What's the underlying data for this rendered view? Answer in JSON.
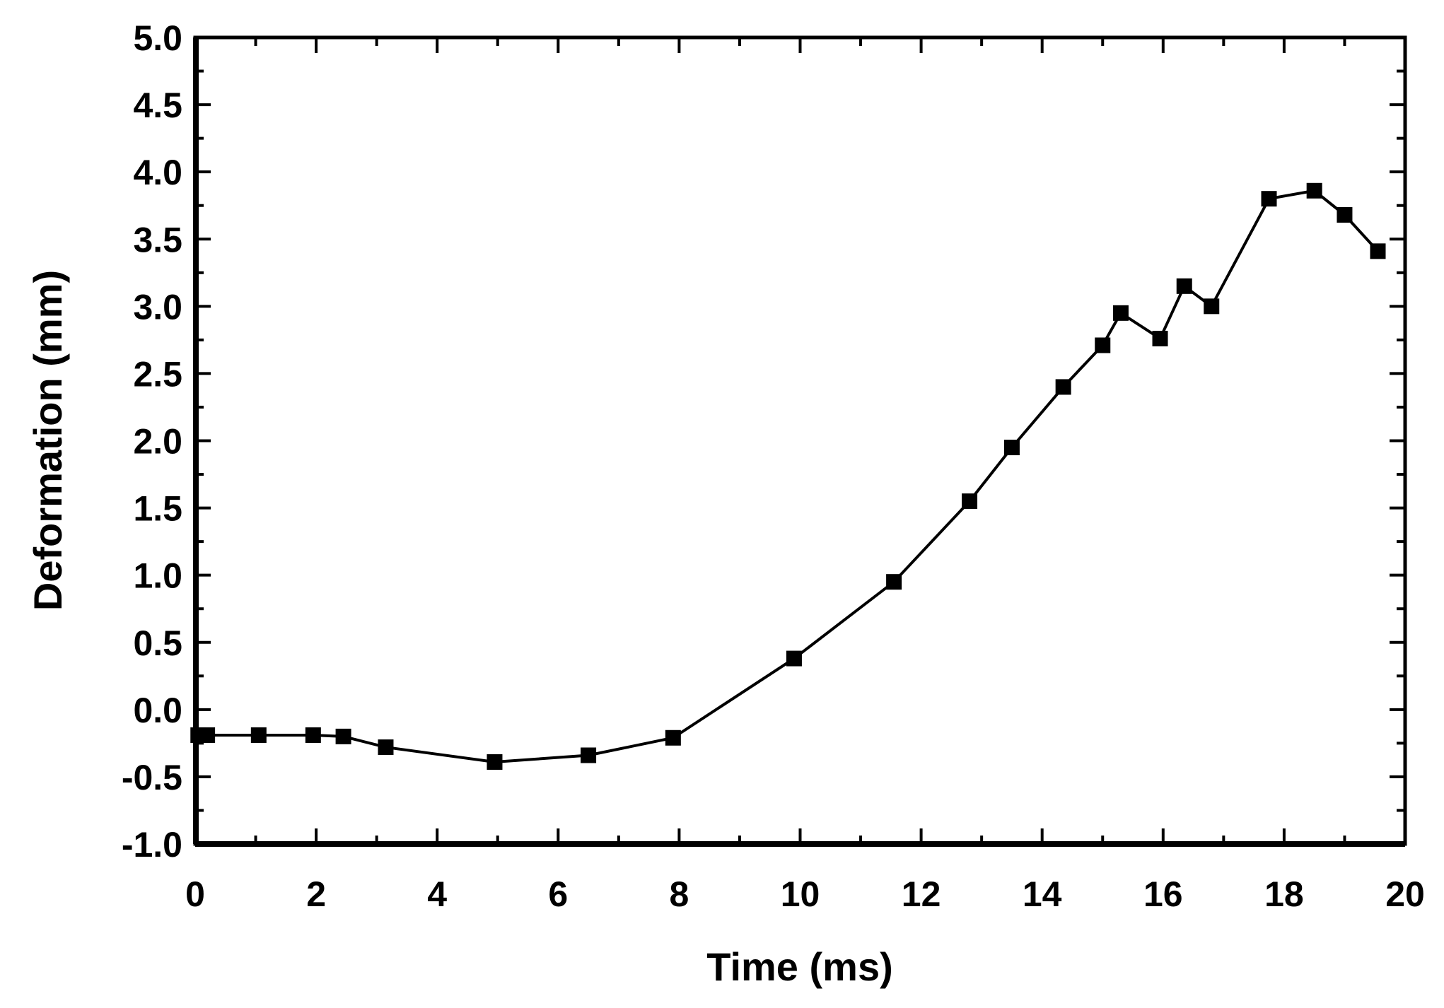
{
  "chart_data": {
    "type": "line",
    "title": "",
    "xlabel": "Time (ms)",
    "ylabel": "Deformation (mm)",
    "xlim": [
      0,
      20
    ],
    "ylim": [
      -1.0,
      5.0
    ],
    "x_ticks": [
      "0",
      "2",
      "4",
      "6",
      "8",
      "10",
      "12",
      "14",
      "16",
      "18",
      "20"
    ],
    "y_ticks": [
      "-1.0",
      "-0.5",
      "0.0",
      "0.5",
      "1.0",
      "1.5",
      "2.0",
      "2.5",
      "3.0",
      "3.5",
      "4.0",
      "4.5",
      "5.0"
    ],
    "grid": false,
    "marker": "square",
    "color": "#000000",
    "series": [
      {
        "x": [
          0.05,
          0.2,
          1.05,
          1.95,
          2.45,
          3.15,
          4.95,
          6.5,
          7.9,
          9.9,
          11.55,
          12.8,
          13.5,
          14.35,
          15.0,
          15.3,
          15.95,
          16.35,
          16.8,
          17.75,
          18.5,
          19.0,
          19.55
        ],
        "y": [
          -0.19,
          -0.19,
          -0.19,
          -0.19,
          -0.2,
          -0.28,
          -0.39,
          -0.34,
          -0.21,
          0.38,
          0.95,
          1.55,
          1.95,
          2.4,
          2.71,
          2.95,
          2.76,
          3.15,
          3.0,
          3.8,
          3.86,
          3.68,
          3.41
        ]
      }
    ]
  }
}
